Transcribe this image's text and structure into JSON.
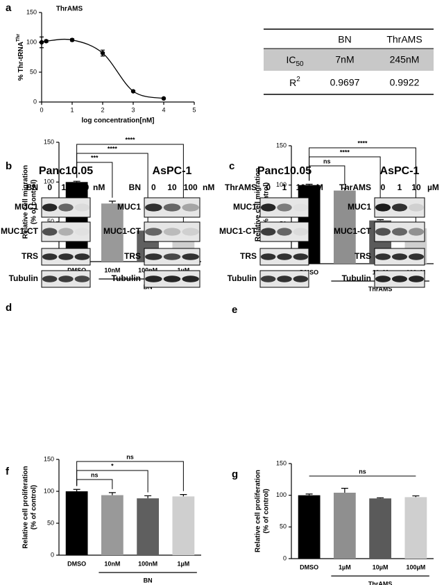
{
  "chart_data": [
    {
      "type": "dose_response",
      "panel": "a",
      "title": "ThrAMS",
      "xlabel": "log concentration[nM]",
      "ylabel": "% Thr-tRNA",
      "ylabel_sup": "Thr",
      "x": [
        0,
        0.15,
        1,
        2,
        3,
        4
      ],
      "values": [
        100,
        102,
        104,
        82,
        18,
        6
      ],
      "errors": [
        9,
        2,
        2,
        5,
        1,
        1
      ],
      "color": "#000000",
      "xlim": [
        0,
        5
      ],
      "ylim": [
        0,
        150
      ],
      "xticks": [
        0,
        1,
        2,
        3,
        4,
        5
      ],
      "yticks": [
        0,
        50,
        100,
        150
      ]
    },
    {
      "type": "bar",
      "panel": "d",
      "ylabel": [
        "Relative cell migration",
        "(% of control)"
      ],
      "categories": [
        "DMSO",
        "10nM",
        "100nM",
        "1µM"
      ],
      "values": [
        100,
        73,
        39,
        38
      ],
      "errors": [
        1,
        3,
        2,
        2
      ],
      "colors": [
        "#000000",
        "#999999",
        "#5f5f5f",
        "#cfcfcf"
      ],
      "ylim": [
        0,
        150
      ],
      "yticks": [
        0,
        50,
        100,
        150
      ],
      "group_label": "BN",
      "group_span": [
        1,
        3
      ],
      "brackets": [
        {
          "from": 0,
          "to": 1,
          "label": "***"
        },
        {
          "from": 0,
          "to": 2,
          "label": "****"
        },
        {
          "from": 0,
          "to": 3,
          "label": "****"
        }
      ]
    },
    {
      "type": "bar",
      "panel": "e",
      "ylabel": [
        "Relative cell migration",
        "(% of control)"
      ],
      "categories": [
        "DMSO",
        null,
        "10µM",
        "100µM"
      ],
      "values": [
        100,
        93,
        55,
        45
      ],
      "errors": [
        1,
        3,
        1,
        3
      ],
      "colors": [
        "#000000",
        "#8f8f8f",
        "#5a5a5a",
        "#cfcfcf"
      ],
      "ylim": [
        0,
        150
      ],
      "yticks": [
        0,
        50,
        100,
        150
      ],
      "group_label": "ThrAMS",
      "group_span": [
        1,
        3
      ],
      "brackets": [
        {
          "from": 0,
          "to": 1,
          "label": "ns"
        },
        {
          "from": 0,
          "to": 2,
          "label": "****"
        },
        {
          "from": 0,
          "to": 3,
          "label": "****"
        }
      ]
    },
    {
      "type": "bar",
      "panel": "f",
      "ylabel": [
        "Relative cell proliferation",
        "(% of control)"
      ],
      "categories": [
        "DMSO",
        "10nM",
        "100nM",
        "1µM"
      ],
      "values": [
        100,
        94,
        89,
        92
      ],
      "errors": [
        3,
        4,
        4,
        3
      ],
      "colors": [
        "#000000",
        "#999999",
        "#5f5f5f",
        "#cfcfcf"
      ],
      "ylim": [
        0,
        150
      ],
      "yticks": [
        0,
        50,
        100,
        150
      ],
      "group_label": "BN",
      "group_span": [
        1,
        3
      ],
      "brackets": [
        {
          "from": 0,
          "to": 1,
          "label": "ns"
        },
        {
          "from": 0,
          "to": 2,
          "label": "*"
        },
        {
          "from": 0,
          "to": 3,
          "label": "ns"
        }
      ]
    },
    {
      "type": "bar",
      "panel": "g",
      "ylabel": [
        "Relative cell proliferation",
        "(% of control)"
      ],
      "categories": [
        "DMSO",
        "1µM",
        "10µM",
        "100µM"
      ],
      "values": [
        100,
        104,
        95,
        97
      ],
      "errors": [
        2,
        7,
        1,
        2
      ],
      "colors": [
        "#000000",
        "#8f8f8f",
        "#5a5a5a",
        "#cfcfcf"
      ],
      "ylim": [
        0,
        150
      ],
      "yticks": [
        0,
        50,
        100,
        150
      ],
      "group_label": "ThrAMS",
      "group_span": [
        1,
        3
      ],
      "bracket_style": "line",
      "brackets": [
        {
          "from": 0,
          "to": 3,
          "label": "ns"
        }
      ]
    }
  ],
  "table": {
    "columns": [
      "BN",
      "ThrAMS"
    ],
    "rows": [
      {
        "label": "IC",
        "label_sub": "50",
        "values": [
          "7nM",
          "245nM"
        ]
      },
      {
        "label": "R",
        "label_sup": "2",
        "values": [
          "0.9697",
          "0.9922"
        ]
      }
    ]
  },
  "blots": [
    {
      "panel": "b",
      "treatment": "BN",
      "doses": [
        "0",
        "10",
        "100"
      ],
      "unit": "nM",
      "cell_lines": [
        "Panc10.05",
        "AsPC-1"
      ],
      "rows": [
        "MUC1",
        "MUC1-CT",
        "TRS",
        "Tubulin"
      ]
    },
    {
      "panel": "c",
      "treatment": "ThrAMS",
      "doses": [
        "0",
        "1",
        "10"
      ],
      "unit": "µM",
      "cell_lines": [
        "Panc10.05",
        "AsPC-1"
      ],
      "rows": [
        "MUC1",
        "MUC1-CT",
        "TRS",
        "Tubulin"
      ]
    }
  ]
}
